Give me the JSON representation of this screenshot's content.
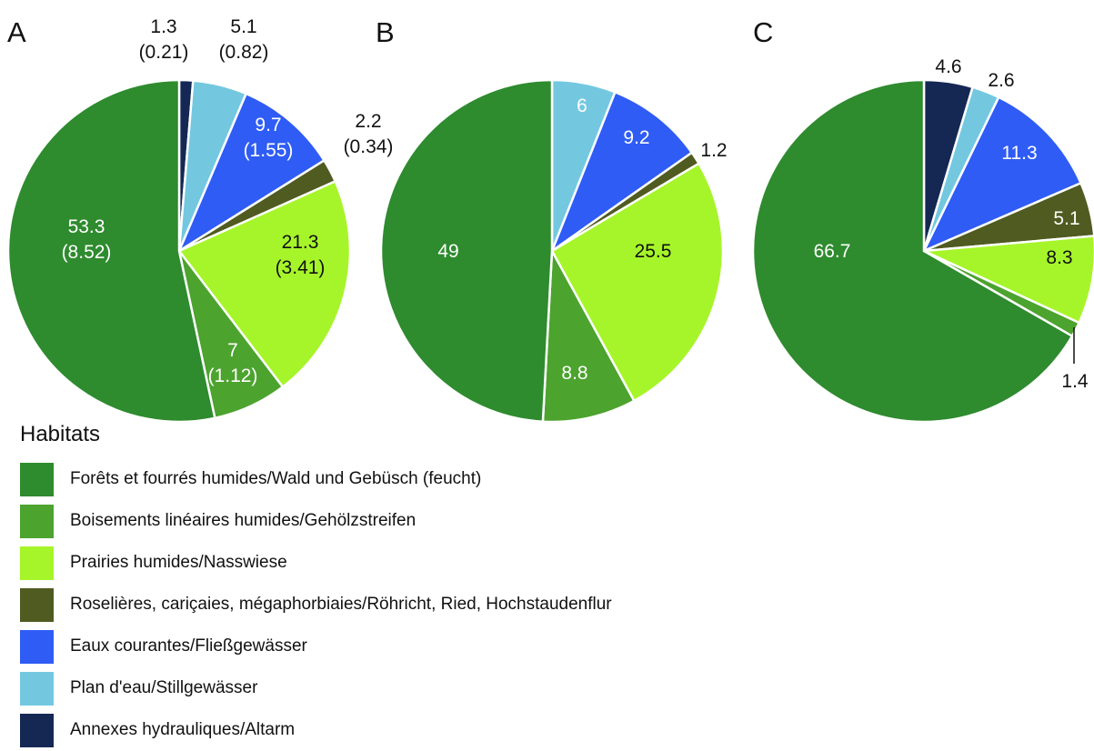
{
  "categories": [
    {
      "key": "forest",
      "label": "Forêts et fourrés humides/Wald und Gebüsch (feucht)",
      "color": "#2e8b2e"
    },
    {
      "key": "linear",
      "label": "Boisements linéaires humides/Gehölzstreifen",
      "color": "#4ca32e"
    },
    {
      "key": "meadow",
      "label": "Prairies humides/Nasswiese",
      "color": "#a6f52a"
    },
    {
      "key": "reed",
      "label": "Roselières, cariçaies, mégaphorbiaies/Röhricht, Ried, Hochstaudenflur",
      "color": "#4f5b20"
    },
    {
      "key": "running",
      "label": "Eaux courantes/Fließgewässer",
      "color": "#2f5cf5"
    },
    {
      "key": "still",
      "label": "Plan d'eau/Stillgewässer",
      "color": "#73c8e0"
    },
    {
      "key": "oxbow",
      "label": "Annexes hydrauliques/Altarm",
      "color": "#152854"
    }
  ],
  "legend": {
    "title": "Habitats"
  },
  "chart_data": [
    {
      "type": "pie",
      "title": "A",
      "values": [
        53.3,
        7,
        21.3,
        2.2,
        9.7,
        5.1,
        1.3
      ],
      "secondary_values": [
        8.52,
        1.12,
        3.41,
        0.34,
        1.55,
        0.82,
        0.21
      ],
      "labels": [
        {
          "line1": "53.3",
          "line2": "(8.52)"
        },
        {
          "line1": "7",
          "line2": "(1.12)"
        },
        {
          "line1": "21.3",
          "line2": "(3.41)"
        },
        {
          "line1": "2.2",
          "line2": "(0.34)"
        },
        {
          "line1": "9.7",
          "line2": "(1.55)"
        },
        {
          "line1": "5.1",
          "line2": "(0.82)"
        },
        {
          "line1": "1.3",
          "line2": "(0.21)"
        }
      ]
    },
    {
      "type": "pie",
      "title": "B",
      "values": [
        49,
        8.8,
        25.5,
        1.2,
        9.2,
        6,
        0
      ],
      "labels": [
        {
          "line1": "49"
        },
        {
          "line1": "8.8"
        },
        {
          "line1": "25.5"
        },
        {
          "line1": "1.2"
        },
        {
          "line1": "9.2"
        },
        {
          "line1": "6"
        },
        {
          "line1": ""
        }
      ]
    },
    {
      "type": "pie",
      "title": "C",
      "values": [
        66.7,
        1.4,
        8.3,
        5.1,
        11.3,
        2.6,
        4.6
      ],
      "labels": [
        {
          "line1": "66.7"
        },
        {
          "line1": "1.4"
        },
        {
          "line1": "8.3"
        },
        {
          "line1": "5.1"
        },
        {
          "line1": "11.3"
        },
        {
          "line1": "2.6"
        },
        {
          "line1": "4.6"
        }
      ]
    }
  ]
}
